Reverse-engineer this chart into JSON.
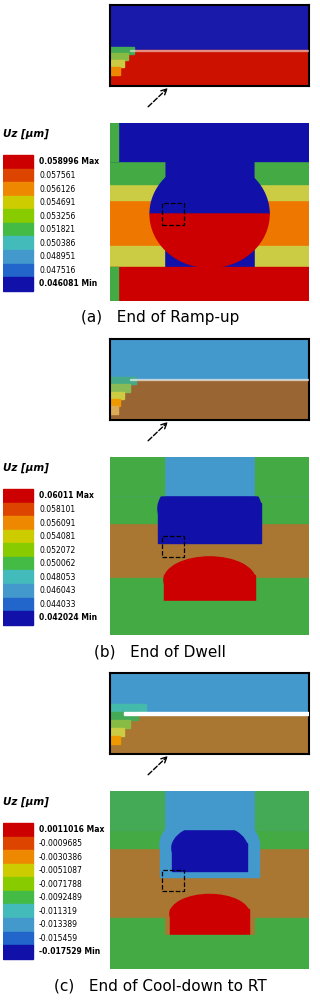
{
  "panels": [
    {
      "label": "(a)",
      "title": "End of Ramp-up",
      "legend_title": "Uz [μm]",
      "max_label": "0.058996 Max",
      "min_label": "0.046081 Min",
      "mid_labels": [
        "0.057561",
        "0.056126",
        "0.054691",
        "0.053256",
        "0.051821",
        "0.050386",
        "0.048951",
        "0.047516"
      ],
      "colors": [
        "#cc0000",
        "#dd4400",
        "#ee8800",
        "#cccc00",
        "#88cc00",
        "#44bb44",
        "#44bbbb",
        "#4499cc",
        "#2266cc",
        "#1111aa"
      ]
    },
    {
      "label": "(b)",
      "title": "End of Dwell",
      "legend_title": "Uz [μm]",
      "max_label": "0.06011 Max",
      "min_label": "0.042024 Min",
      "mid_labels": [
        "0.058101",
        "0.056091",
        "0.054081",
        "0.052072",
        "0.050062",
        "0.048053",
        "0.046043",
        "0.044033"
      ],
      "colors": [
        "#cc0000",
        "#dd4400",
        "#ee8800",
        "#cccc00",
        "#88cc00",
        "#44bb44",
        "#44bbbb",
        "#4499cc",
        "#2266cc",
        "#1111aa"
      ]
    },
    {
      "label": "(c)",
      "title": "End of Cool-down to RT",
      "legend_title": "Uz [μm]",
      "max_label": "0.0011016 Max",
      "min_label": "-0.017529 Min",
      "mid_labels": [
        "-0.0009685",
        "-0.0030386",
        "-0.0051087",
        "-0.0071788",
        "-0.0092489",
        "-0.011319",
        "-0.013389",
        "-0.015459"
      ],
      "colors": [
        "#cc0000",
        "#dd4400",
        "#ee8800",
        "#cccc00",
        "#88cc00",
        "#44bb44",
        "#44bbbb",
        "#4499cc",
        "#2266cc",
        "#1111aa"
      ]
    }
  ]
}
